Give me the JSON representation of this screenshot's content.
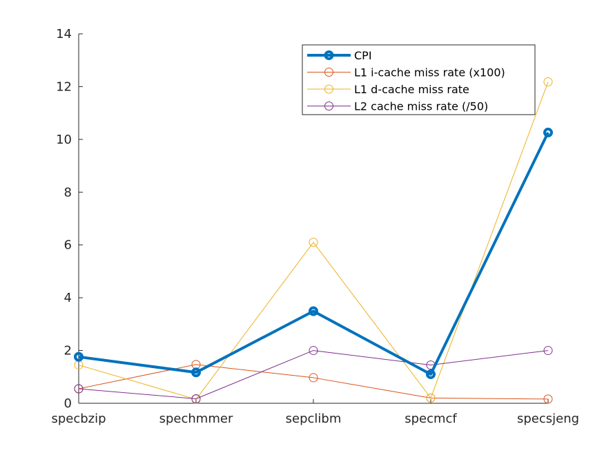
{
  "chart_data": {
    "type": "line",
    "title": "",
    "xlabel": "",
    "ylabel": "",
    "categories": [
      "specbzip",
      "spechmmer",
      "sepclibm",
      "specmcf",
      "specsjeng"
    ],
    "ylim": [
      0,
      14
    ],
    "yticks": [
      0,
      2,
      4,
      6,
      8,
      10,
      12,
      14
    ],
    "grid": false,
    "legend_position": "top-right",
    "series": [
      {
        "name": "CPI",
        "values": [
          1.76,
          1.17,
          3.49,
          1.1,
          10.26
        ],
        "color": "#0072BD",
        "emphasis": "thick"
      },
      {
        "name": "L1 i-cache miss rate (x100)",
        "values": [
          0.55,
          1.47,
          0.97,
          0.2,
          0.16
        ],
        "color": "#D95319"
      },
      {
        "name": "L1 d-cache miss rate",
        "values": [
          1.45,
          0.15,
          6.1,
          0.2,
          12.18
        ],
        "color": "#EDB120"
      },
      {
        "name": "L2 cache miss rate (/50)",
        "values": [
          0.55,
          0.17,
          2.0,
          1.45,
          2.0
        ],
        "color": "#7E2F8E"
      }
    ]
  }
}
